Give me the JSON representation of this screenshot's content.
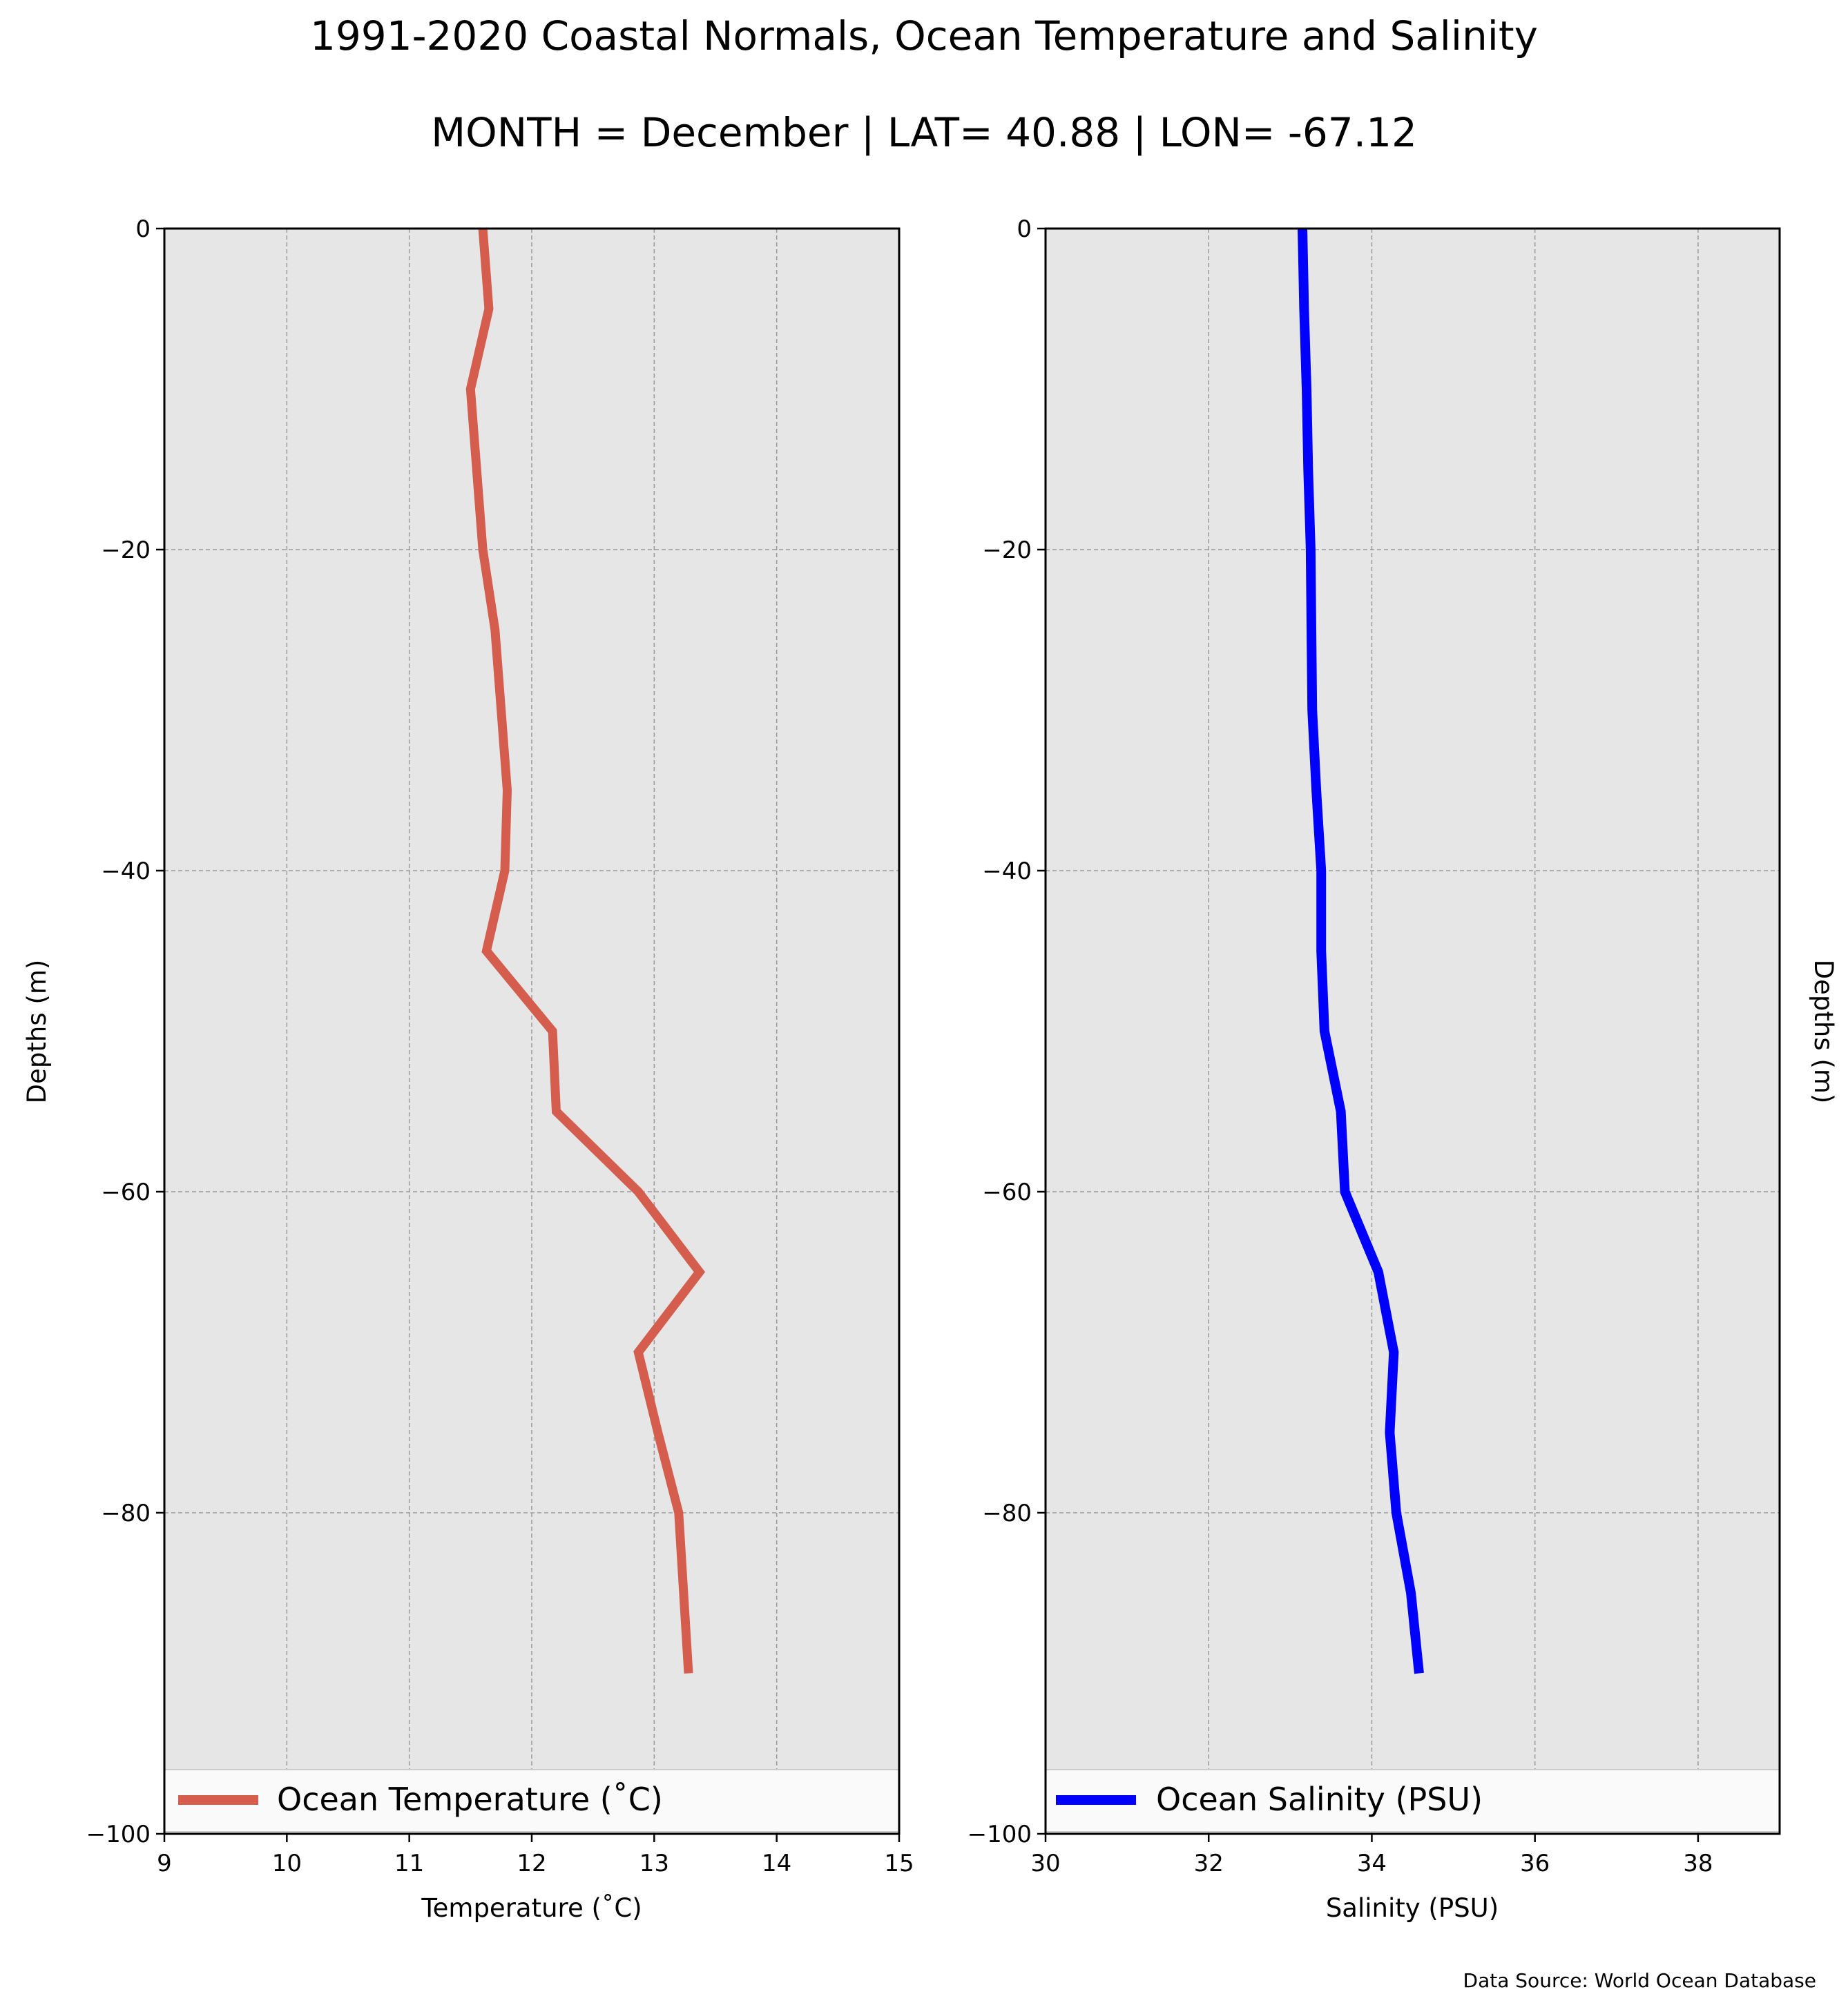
{
  "figure": {
    "title": "1991-2020 Coastal Normals, Ocean Temperature and Salinity",
    "subtitle": "MONTH = December | LAT= 40.88 | LON= -67.12",
    "source": "Data Source: World Ocean Database",
    "background": "#ffffff",
    "plot_background": "#e6e6e6"
  },
  "chart_data": [
    {
      "type": "line",
      "id": "temperature",
      "xlabel": "Temperature ($^\\circ$C)",
      "xlabel_display": "Temperature (˚C)",
      "ylabel": "Depths (m)",
      "ylabel_side": "left",
      "xlim": [
        9,
        15
      ],
      "ylim": [
        -100,
        0
      ],
      "xticks": [
        9,
        10,
        11,
        12,
        13,
        14,
        15
      ],
      "xtick_labels": [
        "9",
        "10",
        "11",
        "12",
        "13",
        "14",
        "15"
      ],
      "yticks": [
        0,
        -20,
        -40,
        -60,
        -80,
        -100
      ],
      "ytick_labels": [
        "0",
        "−20",
        "−40",
        "−60",
        "−80",
        "−100"
      ],
      "grid": true,
      "legend_placement": "lower center",
      "series": [
        {
          "name": "Ocean Temperature (˚C)",
          "color": "#d45d4e",
          "x": [
            11.6,
            11.65,
            11.5,
            11.55,
            11.6,
            11.7,
            11.75,
            11.8,
            11.78,
            11.63,
            12.17,
            12.2,
            12.87,
            13.37,
            12.87,
            13.03,
            13.2,
            13.28
          ],
          "y": [
            0,
            -5,
            -10,
            -15,
            -20,
            -25,
            -30,
            -35,
            -40,
            -45,
            -50,
            -55,
            -60,
            -65,
            -70,
            -75,
            -80,
            -90
          ]
        }
      ]
    },
    {
      "type": "line",
      "id": "salinity",
      "xlabel": "Salinity (PSU)",
      "ylabel": "Depths (m)",
      "ylabel_side": "right",
      "xlim": [
        30,
        39
      ],
      "ylim": [
        -100,
        0
      ],
      "xticks": [
        30,
        32,
        34,
        36,
        38
      ],
      "xtick_labels": [
        "30",
        "32",
        "34",
        "36",
        "38"
      ],
      "yticks": [
        0,
        -20,
        -40,
        -60,
        -80,
        -100
      ],
      "ytick_labels": [
        "0",
        "−20",
        "−40",
        "−60",
        "−80",
        "−100"
      ],
      "grid": true,
      "legend_placement": "lower center",
      "series": [
        {
          "name": "Ocean Salinity (PSU)",
          "color": "#0000ff",
          "x": [
            33.15,
            33.17,
            33.2,
            33.22,
            33.25,
            33.26,
            33.27,
            33.32,
            33.38,
            33.38,
            33.42,
            33.62,
            33.67,
            34.08,
            34.27,
            34.22,
            34.3,
            34.48,
            34.58
          ],
          "y": [
            0,
            -5,
            -10,
            -15,
            -20,
            -25,
            -30,
            -35,
            -40,
            -45,
            -50,
            -55,
            -60,
            -65,
            -70,
            -75,
            -80,
            -85,
            -90
          ]
        }
      ]
    }
  ]
}
